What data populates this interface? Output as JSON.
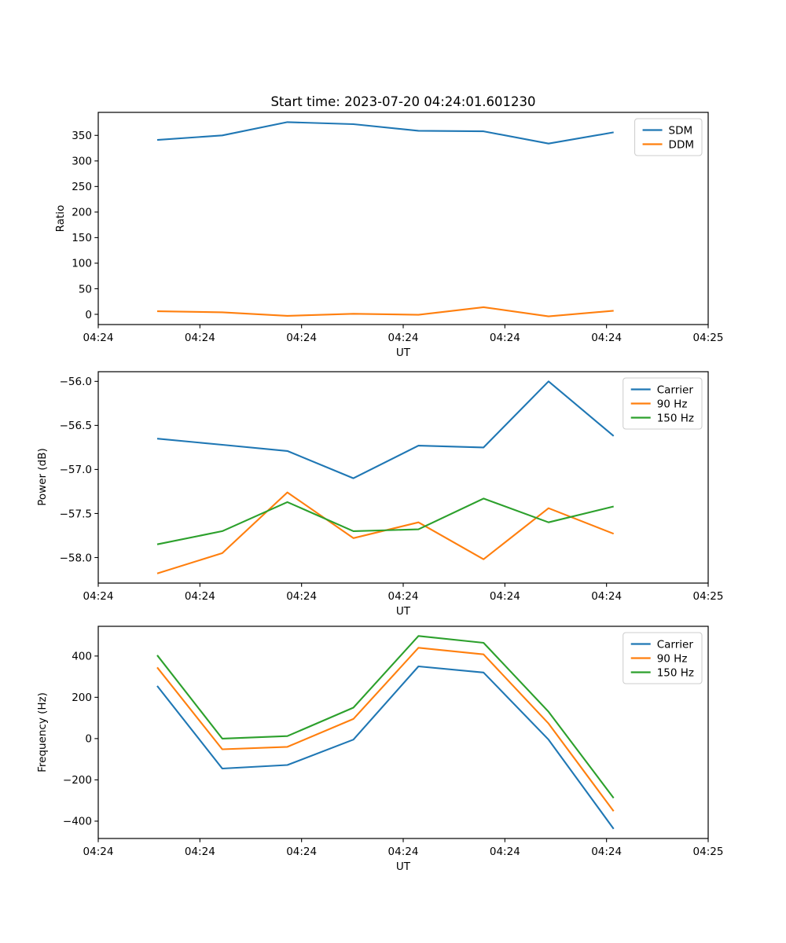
{
  "figure": {
    "title": "Start time: 2023-07-20 04:24:01.601230",
    "background_color": "#ffffff",
    "text_color": "#000000"
  },
  "chart_data": [
    {
      "type": "line",
      "title": "Start time: 2023-07-20 04:24:01.601230",
      "xlabel": "UT",
      "ylabel": "Ratio",
      "x_note": "seconds after 04:24:00 UT, estimated from pixel positions",
      "x": [
        5.8,
        12.2,
        18.6,
        25.1,
        31.5,
        37.9,
        44.3,
        50.7
      ],
      "xlim": [
        0,
        60
      ],
      "xtick_labels": [
        "04:24",
        "04:24",
        "04:24",
        "04:24",
        "04:24",
        "04:24",
        "04:25"
      ],
      "ytick_values": [
        0,
        50,
        100,
        150,
        200,
        250,
        300,
        350
      ],
      "ytick_decimals": 0,
      "ylim": [
        -20,
        395
      ],
      "grid": false,
      "legend_position": "upper right",
      "series": [
        {
          "name": "SDM",
          "color": "#1f77b4",
          "values": [
            341,
            350,
            376,
            372,
            359,
            358,
            334,
            356
          ]
        },
        {
          "name": "DDM",
          "color": "#ff7f0e",
          "values": [
            6,
            4,
            -3,
            1,
            -1,
            14,
            -4,
            7
          ]
        }
      ]
    },
    {
      "type": "line",
      "title": "",
      "xlabel": "UT",
      "ylabel": "Power (dB)",
      "x_note": "seconds after 04:24:00 UT, estimated from pixel positions",
      "x": [
        5.8,
        12.2,
        18.6,
        25.1,
        31.5,
        37.9,
        44.3,
        50.7
      ],
      "xlim": [
        0,
        60
      ],
      "xtick_labels": [
        "04:24",
        "04:24",
        "04:24",
        "04:24",
        "04:24",
        "04:24",
        "04:25"
      ],
      "ytick_values": [
        -56.0,
        -56.5,
        -57.0,
        -57.5,
        -58.0
      ],
      "ytick_decimals": 1,
      "ylim": [
        -58.29,
        -55.89
      ],
      "grid": false,
      "legend_position": "upper right",
      "series": [
        {
          "name": "Carrier",
          "color": "#1f77b4",
          "values": [
            -56.65,
            -56.72,
            -56.79,
            -57.1,
            -56.73,
            -56.75,
            -56.0,
            -56.62
          ]
        },
        {
          "name": "90 Hz",
          "color": "#ff7f0e",
          "values": [
            -58.18,
            -57.95,
            -57.26,
            -57.78,
            -57.6,
            -58.02,
            -57.44,
            -57.73
          ]
        },
        {
          "name": "150 Hz",
          "color": "#2ca02c",
          "values": [
            -57.85,
            -57.7,
            -57.37,
            -57.7,
            -57.68,
            -57.33,
            -57.6,
            -57.42
          ]
        }
      ]
    },
    {
      "type": "line",
      "title": "",
      "xlabel": "UT",
      "ylabel": "Frequency (Hz)",
      "x_note": "seconds after 04:24:00 UT, estimated from pixel positions",
      "x": [
        5.8,
        12.2,
        18.6,
        25.1,
        31.5,
        37.9,
        44.3,
        50.7
      ],
      "xlim": [
        0,
        60
      ],
      "xtick_labels": [
        "04:24",
        "04:24",
        "04:24",
        "04:24",
        "04:24",
        "04:24",
        "04:25"
      ],
      "ytick_values": [
        -400,
        -200,
        0,
        200,
        400
      ],
      "ytick_decimals": 0,
      "ylim": [
        -484,
        544
      ],
      "grid": false,
      "legend_position": "upper right",
      "series": [
        {
          "name": "Carrier",
          "color": "#1f77b4",
          "values": [
            255,
            -145,
            -128,
            -5,
            350,
            320,
            -5,
            -437
          ]
        },
        {
          "name": "90 Hz",
          "color": "#ff7f0e",
          "values": [
            345,
            -52,
            -40,
            95,
            440,
            408,
            73,
            -352
          ]
        },
        {
          "name": "150 Hz",
          "color": "#2ca02c",
          "values": [
            404,
            0,
            12,
            150,
            497,
            464,
            130,
            -288
          ]
        }
      ]
    }
  ]
}
